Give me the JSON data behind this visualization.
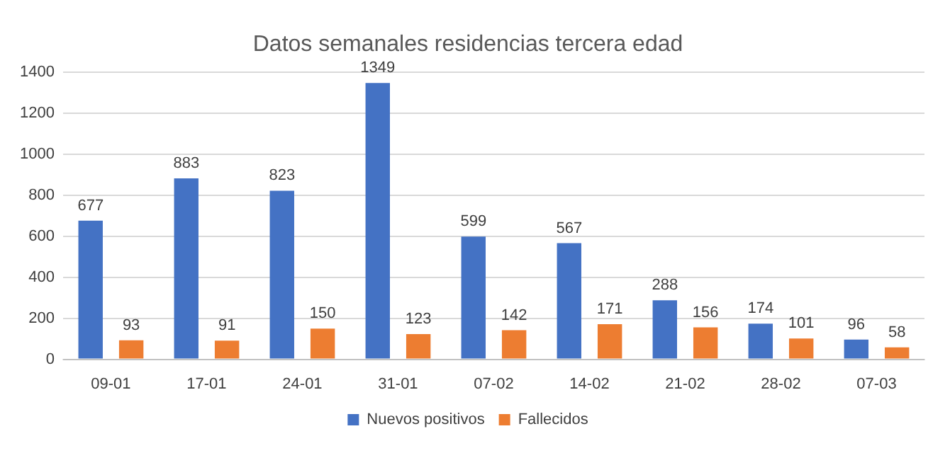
{
  "chart_data": {
    "type": "bar",
    "title": "Datos semanales residencias tercera edad",
    "categories": [
      "09-01",
      "17-01",
      "24-01",
      "31-01",
      "07-02",
      "14-02",
      "21-02",
      "28-02",
      "07-03"
    ],
    "series": [
      {
        "name": "Nuevos positivos",
        "color": "#4472c4",
        "values": [
          677,
          883,
          823,
          1349,
          599,
          567,
          288,
          174,
          96
        ]
      },
      {
        "name": "Fallecidos",
        "color": "#ed7d31",
        "values": [
          93,
          91,
          150,
          123,
          142,
          171,
          156,
          101,
          58
        ]
      }
    ],
    "ylim": [
      0,
      1400
    ],
    "yticks": [
      0,
      200,
      400,
      600,
      800,
      1000,
      1200,
      1400
    ],
    "grid": "y",
    "legend": "bottom",
    "data_labels": true
  }
}
